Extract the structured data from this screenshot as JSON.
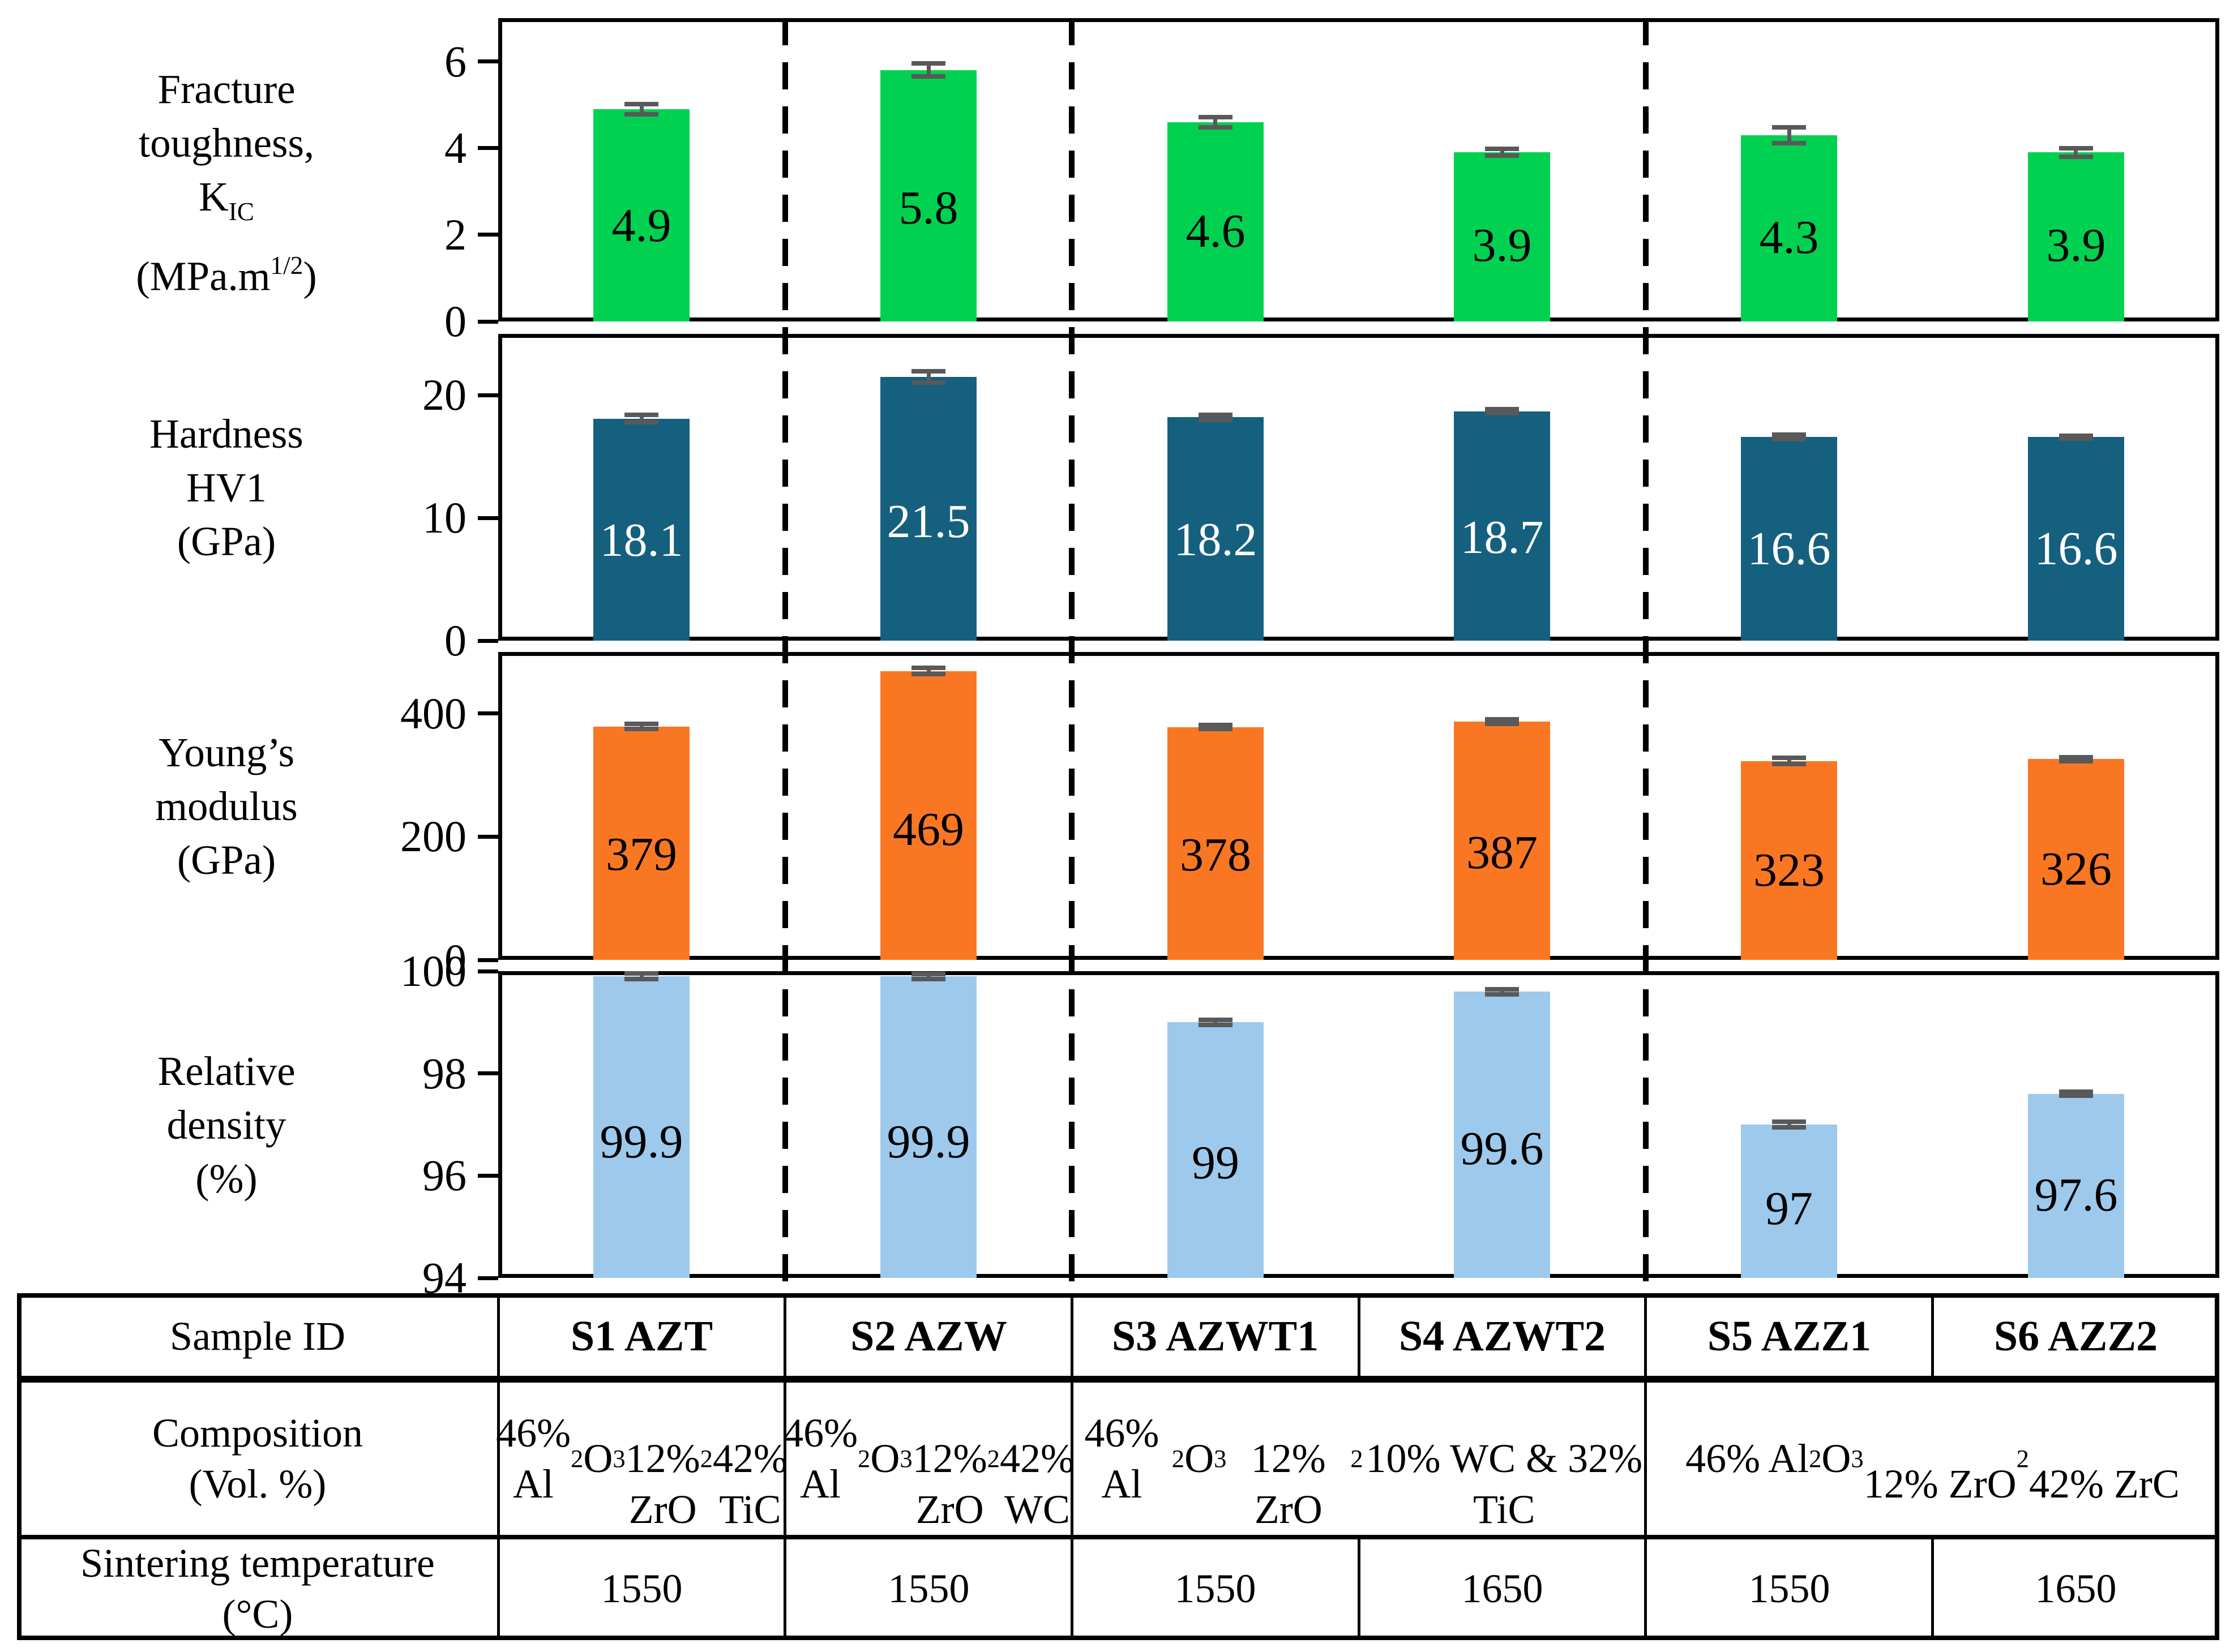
{
  "chart_data": [
    {
      "type": "bar",
      "id": "fracture-toughness",
      "ylabel_lines": [
        "Fracture",
        "toughness,",
        "K~IC~",
        "(MPa.m^1/2^)"
      ],
      "ylim": [
        0,
        7
      ],
      "yticks": [
        0,
        2,
        4,
        6
      ],
      "categories": [
        "S1 AZT",
        "S2 AZW",
        "S3 AZWT1",
        "S4 AZWT2",
        "S5 AZZ1",
        "S6 AZZ2"
      ],
      "values": [
        4.9,
        5.8,
        4.6,
        3.9,
        4.3,
        3.9
      ],
      "value_labels": [
        "4.9",
        "5.8",
        "4.6",
        "3.9",
        "4.3",
        "3.9"
      ],
      "errors": [
        0.12,
        0.15,
        0.12,
        0.08,
        0.18,
        0.1
      ],
      "bar_color": "#00d150",
      "label_color": "#000000",
      "grid": false,
      "legend": "none"
    },
    {
      "type": "bar",
      "id": "hardness",
      "ylabel_lines": [
        "Hardness",
        "HV1",
        "(GPa)"
      ],
      "ylim": [
        0,
        25
      ],
      "yticks": [
        0,
        10,
        20
      ],
      "categories": [
        "S1 AZT",
        "S2 AZW",
        "S3 AZWT1",
        "S4 AZWT2",
        "S5 AZZ1",
        "S6 AZZ2"
      ],
      "values": [
        18.1,
        21.5,
        18.2,
        18.7,
        16.6,
        16.6
      ],
      "value_labels": [
        "18.1",
        "21.5",
        "18.2",
        "18.7",
        "16.6",
        "16.6"
      ],
      "errors": [
        0.3,
        0.45,
        0.2,
        0.15,
        0.2,
        0.12
      ],
      "bar_color": "#15607f",
      "label_color": "#ffffff",
      "grid": false,
      "legend": "none"
    },
    {
      "type": "bar",
      "id": "youngs-modulus",
      "ylabel_lines": [
        "Young’s",
        "modulus",
        "(GPa)"
      ],
      "ylim": [
        0,
        500
      ],
      "yticks": [
        0,
        200,
        400
      ],
      "categories": [
        "S1 AZT",
        "S2 AZW",
        "S3 AZWT1",
        "S4 AZWT2",
        "S5 AZZ1",
        "S6 AZZ2"
      ],
      "values": [
        379,
        469,
        378,
        387,
        323,
        326
      ],
      "value_labels": [
        "379",
        "469",
        "378",
        "387",
        "323",
        "326"
      ],
      "errors": [
        4,
        5,
        3,
        4,
        5,
        3
      ],
      "bar_color": "#f97723",
      "label_color": "#000000",
      "grid": false,
      "legend": "none"
    },
    {
      "type": "bar",
      "id": "relative-density",
      "ylabel_lines": [
        "Relative",
        "density",
        "(%)"
      ],
      "ylim": [
        94,
        100
      ],
      "yticks": [
        94,
        96,
        98,
        100
      ],
      "categories": [
        "S1 AZT",
        "S2 AZW",
        "S3 AZWT1",
        "S4 AZWT2",
        "S5 AZZ1",
        "S6 AZZ2"
      ],
      "values": [
        99.9,
        99.9,
        99,
        99.6,
        97,
        97.6
      ],
      "value_labels": [
        "99.9",
        "99.9",
        "99",
        "99.6",
        "97",
        "97.6"
      ],
      "errors": [
        0.06,
        0.05,
        0.05,
        0.05,
        0.06,
        0.04
      ],
      "bar_color": "#9dc9ec",
      "label_color": "#000000",
      "grid": false,
      "legend": "none"
    }
  ],
  "dividers_after_slots": [
    1,
    2,
    4
  ],
  "table": {
    "header": {
      "label": "Sample ID",
      "cells": [
        "S1 AZT",
        "S2 AZW",
        "S3 AZWT1",
        "S4 AZWT2",
        "S5 AZZ1",
        "S6 AZZ2"
      ]
    },
    "composition": {
      "label_lines": [
        "Composition",
        "(Vol. %)"
      ],
      "cells": [
        {
          "span": 1,
          "lines": [
            "46% Al~2~O~3~",
            "12% ZrO~2~",
            "42% TiC"
          ]
        },
        {
          "span": 1,
          "lines": [
            "46% Al~2~O~3~",
            "12% ZrO~2~",
            "42% WC"
          ]
        },
        {
          "span": 2,
          "lines": [
            "46% Al~2~O~3~",
            "12% ZrO~2~",
            "10% WC & 32% TiC"
          ]
        },
        {
          "span": 2,
          "lines": [
            "46% Al~2~O~3~",
            "12% ZrO~2~",
            "42% ZrC"
          ]
        }
      ]
    },
    "sintering": {
      "label_lines": [
        "Sintering temperature",
        "(°C)"
      ],
      "cells": [
        "1550",
        "1550",
        "1550",
        "1650",
        "1550",
        "1650"
      ]
    }
  },
  "colors": {
    "fracture_green": "#00d150",
    "hardness_blue": "#15607f",
    "youngs_orange": "#f97723",
    "density_light_blue": "#9dc9ec",
    "error_bar_gray": "#595959",
    "divider_black": "#000000"
  }
}
